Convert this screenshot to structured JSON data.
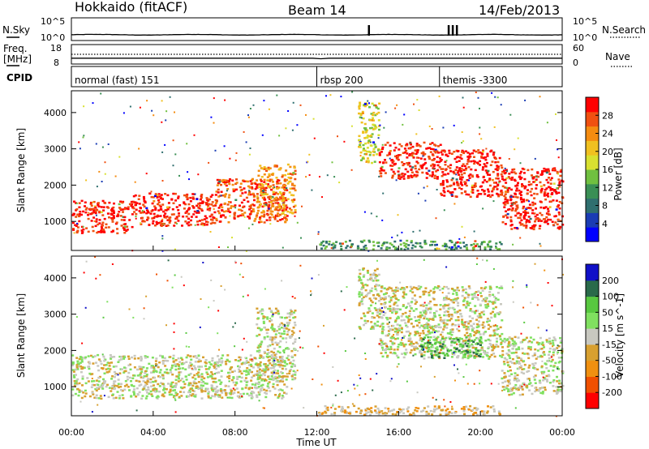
{
  "header": {
    "station": "Hokkaido (fitACF)",
    "beam": "Beam 14",
    "date": "14/Feb/2013"
  },
  "colors": {
    "power_scale": [
      "#0000ff",
      "#1a3cb4",
      "#2f6f6f",
      "#3a8f55",
      "#70c040",
      "#d8e030",
      "#f0c020",
      "#f58c10",
      "#f05010",
      "#ff0000"
    ],
    "velocity_scale": [
      "#1010c8",
      "#2a6a4a",
      "#58c840",
      "#80e060",
      "#c8c8c0",
      "#d8a030",
      "#f09010",
      "#f05000",
      "#ff0000"
    ],
    "ground_scatter": "#c0c0b8"
  },
  "chart_data": [
    {
      "type": "line",
      "name": "nsky-nsearch",
      "left_label": "N.Sky",
      "left_ticks": [
        "10^5",
        "10^0"
      ],
      "right_label": "N.Search",
      "right_ticks": [
        "10^5",
        "10^0"
      ],
      "baseline": 10,
      "spike_times": [
        14.5,
        18.4,
        18.6,
        18.8
      ]
    },
    {
      "type": "line",
      "name": "freq-nave",
      "left_label": "Freq.",
      "left_unit": "[MHz]",
      "left_ticks": [
        "18",
        "8"
      ],
      "right_label": "Nave",
      "right_ticks": [
        "60",
        "0"
      ],
      "freq_mhz": [
        [
          0,
          10.8
        ],
        [
          11.8,
          10.8
        ],
        [
          12.2,
          10.5
        ],
        [
          12.6,
          10.8
        ],
        [
          24,
          10.8
        ]
      ],
      "nave": [
        [
          0,
          30
        ],
        [
          24,
          30
        ]
      ]
    },
    {
      "type": "table",
      "name": "cpid",
      "label": "CPID",
      "modes": [
        {
          "start": 0,
          "label": "normal (fast) 151"
        },
        {
          "start": 12,
          "label": "rbsp 200"
        },
        {
          "start": 18,
          "label": "themis -3300"
        }
      ]
    },
    {
      "type": "heatmap",
      "name": "power",
      "ylabel": "Slant Range [km]",
      "yticks": [
        1000,
        2000,
        3000,
        4000
      ],
      "ylim": [
        200,
        4600
      ],
      "colorbar_label": "Power [dB]",
      "colorbar_ticks": [
        "28",
        "24",
        "20",
        "16",
        "12",
        "8",
        "4"
      ],
      "scatter_bands": [
        {
          "t0": 0.0,
          "t1": 3.0,
          "r0": 700,
          "r1": 1600,
          "level": 9
        },
        {
          "t0": 3.0,
          "t1": 7.0,
          "r0": 900,
          "r1": 1800,
          "level": 9
        },
        {
          "t0": 7.0,
          "t1": 10.5,
          "r0": 1000,
          "r1": 2200,
          "level": 8
        },
        {
          "t0": 9.0,
          "t1": 10.9,
          "r0": 1200,
          "r1": 2600,
          "level": 7
        },
        {
          "t0": 15.0,
          "t1": 18.0,
          "r0": 2200,
          "r1": 3200,
          "level": 9
        },
        {
          "t0": 18.0,
          "t1": 21.0,
          "r0": 1700,
          "r1": 3000,
          "level": 9
        },
        {
          "t0": 21.0,
          "t1": 24.0,
          "r0": 800,
          "r1": 2500,
          "level": 9
        },
        {
          "t0": 14.0,
          "t1": 15.0,
          "r0": 2600,
          "r1": 4300,
          "level": 5
        },
        {
          "t0": 12.0,
          "t1": 21.0,
          "r0": 250,
          "r1": 500,
          "level": 3
        }
      ]
    },
    {
      "type": "heatmap",
      "name": "velocity",
      "ylabel": "Slant Range [km]",
      "yticks": [
        1000,
        2000,
        3000,
        4000
      ],
      "ylim": [
        200,
        4600
      ],
      "xlabel": "Time UT",
      "xticks": [
        "00:00",
        "04:00",
        "08:00",
        "12:00",
        "16:00",
        "20:00",
        "00:00"
      ],
      "colorbar_label": "Velocity [m s^-1]",
      "colorbar_ticks": [
        "200",
        "100",
        "50",
        "15",
        "-15",
        "-50",
        "-100",
        "-200"
      ],
      "scatter_bands": [
        {
          "t0": 0.0,
          "t1": 10.5,
          "r0": 700,
          "r1": 1900,
          "level": 4
        },
        {
          "t0": 9.0,
          "t1": 10.9,
          "r0": 1200,
          "r1": 3200,
          "level": 4
        },
        {
          "t0": 14.0,
          "t1": 15.0,
          "r0": 2600,
          "r1": 4300,
          "level": 4
        },
        {
          "t0": 15.0,
          "t1": 21.0,
          "r0": 1800,
          "r1": 3800,
          "level": 4
        },
        {
          "t0": 21.0,
          "t1": 24.0,
          "r0": 800,
          "r1": 2400,
          "level": 4
        },
        {
          "t0": 17.0,
          "t1": 20.0,
          "r0": 1800,
          "r1": 2400,
          "level": 2
        },
        {
          "t0": 12.0,
          "t1": 21.0,
          "r0": 250,
          "r1": 500,
          "level": 5
        }
      ]
    }
  ]
}
